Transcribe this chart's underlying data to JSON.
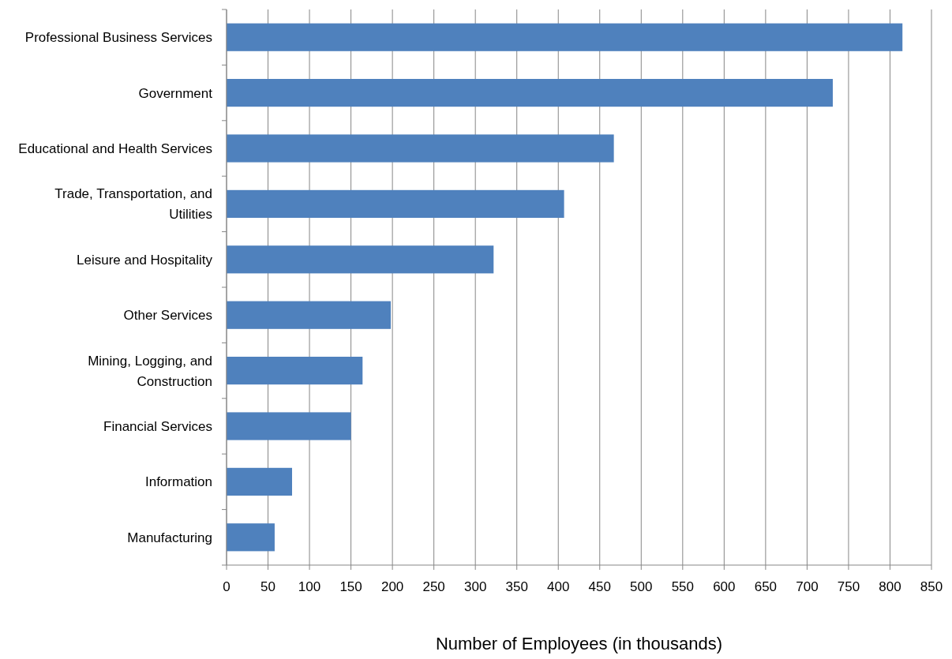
{
  "chart_data": {
    "type": "bar",
    "orientation": "horizontal",
    "xlabel": "Number of Employees (in thousands)",
    "categories": [
      "Professional Business Services",
      "Government",
      "Educational and Health Services",
      "Trade, Transportation, and Utilities",
      "Leisure and Hospitality",
      "Other Services",
      "Mining, Logging, and Construction",
      "Financial Services",
      "Information",
      "Manufacturing"
    ],
    "values": [
      815,
      731,
      467,
      407,
      322,
      198,
      164,
      150,
      79,
      58
    ],
    "color": "#4f81bd",
    "xlim": [
      0,
      850
    ],
    "xticks": [
      0,
      50,
      100,
      150,
      200,
      250,
      300,
      350,
      400,
      450,
      500,
      550,
      600,
      650,
      700,
      750,
      800,
      850
    ],
    "grid": "x"
  }
}
